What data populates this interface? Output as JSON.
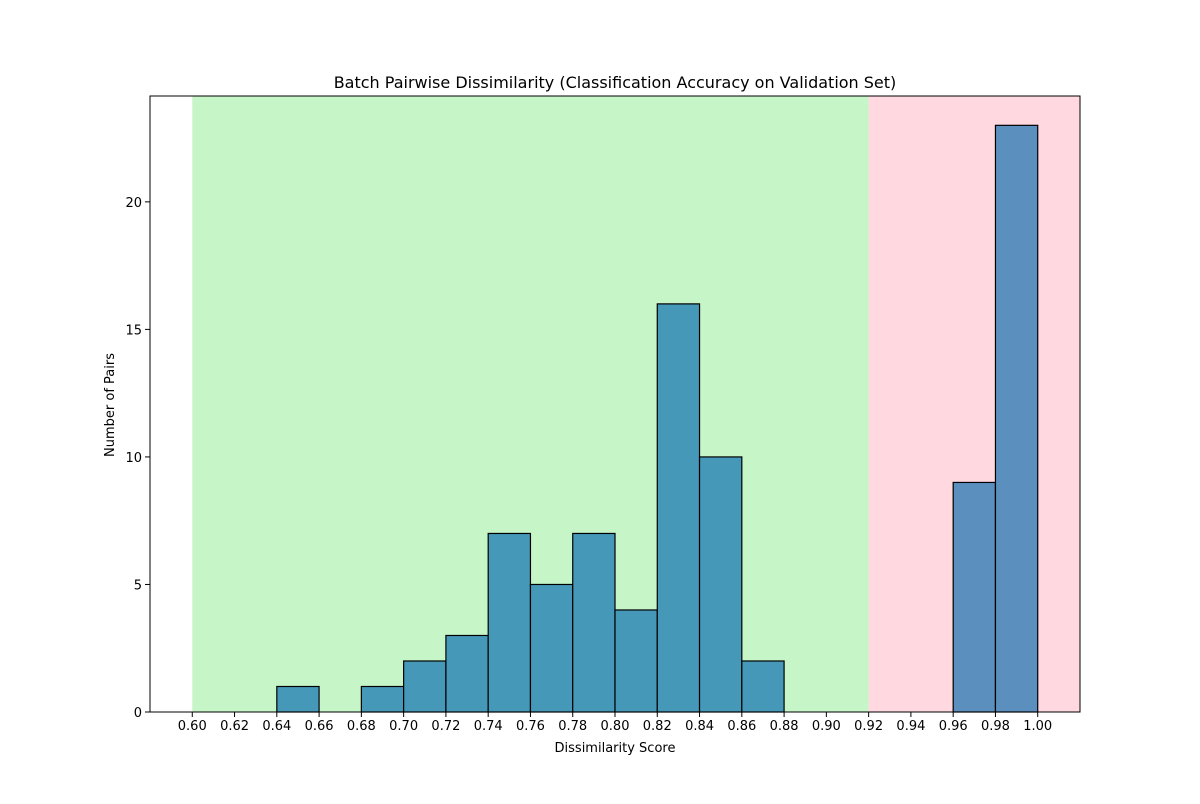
{
  "chart_data": {
    "type": "bar",
    "title": "Batch Pairwise Dissimilarity (Classification Accuracy on Validation Set)",
    "xlabel": "Dissimilarity Score",
    "ylabel": "Number of Pairs",
    "xlim": [
      0.58,
      1.02
    ],
    "ylim": [
      0,
      24.15
    ],
    "xticks": [
      "0.60",
      "0.62",
      "0.64",
      "0.66",
      "0.68",
      "0.70",
      "0.72",
      "0.74",
      "0.76",
      "0.78",
      "0.80",
      "0.82",
      "0.84",
      "0.86",
      "0.88",
      "0.90",
      "0.92",
      "0.94",
      "0.96",
      "0.98",
      "1.00"
    ],
    "yticks": [
      "0",
      "5",
      "10",
      "15",
      "20"
    ],
    "grid": false,
    "bins": [
      {
        "x0": 0.64,
        "x1": 0.66,
        "count": 1
      },
      {
        "x0": 0.68,
        "x1": 0.7,
        "count": 1
      },
      {
        "x0": 0.7,
        "x1": 0.72,
        "count": 2
      },
      {
        "x0": 0.72,
        "x1": 0.74,
        "count": 3
      },
      {
        "x0": 0.74,
        "x1": 0.76,
        "count": 7
      },
      {
        "x0": 0.76,
        "x1": 0.78,
        "count": 5
      },
      {
        "x0": 0.78,
        "x1": 0.8,
        "count": 7
      },
      {
        "x0": 0.8,
        "x1": 0.82,
        "count": 4
      },
      {
        "x0": 0.82,
        "x1": 0.84,
        "count": 16
      },
      {
        "x0": 0.84,
        "x1": 0.86,
        "count": 10
      },
      {
        "x0": 0.86,
        "x1": 0.88,
        "count": 2
      },
      {
        "x0": 0.96,
        "x1": 0.98,
        "count": 9
      },
      {
        "x0": 0.98,
        "x1": 1.0,
        "count": 23
      }
    ],
    "regions": [
      {
        "from": 0.6,
        "to": 0.92,
        "color": "#c6f6c8"
      },
      {
        "from": 0.92,
        "to": 1.02,
        "color": "#ffd9df"
      }
    ],
    "colors": {
      "bar_in_green": "#4698b9",
      "bar_in_pink": "#5a8fbe",
      "bar_edge": "#000000"
    }
  }
}
